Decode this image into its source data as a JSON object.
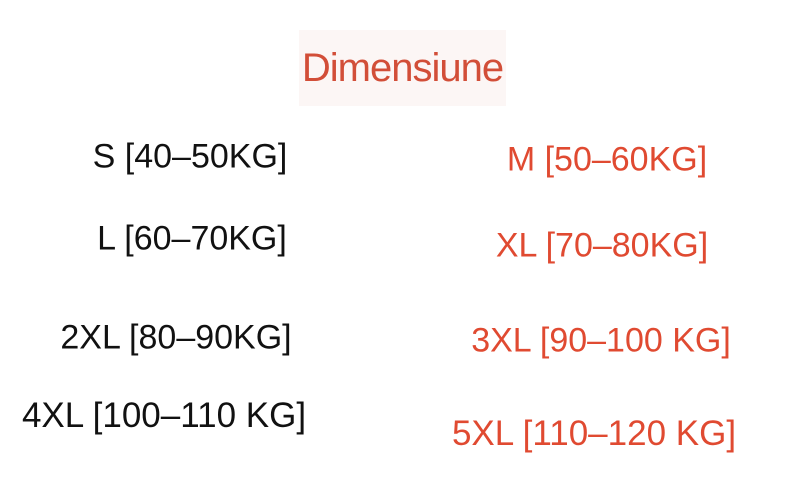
{
  "title": {
    "text": "Dimensiune"
  },
  "sizes": [
    {
      "label": "S [40–50KG]",
      "highlighted": false
    },
    {
      "label": "M [50–60KG]",
      "highlighted": true
    },
    {
      "label": "L [60–70KG]",
      "highlighted": false
    },
    {
      "label": "XL [70–80KG]",
      "highlighted": true
    },
    {
      "label": "2XL [80–90KG]",
      "highlighted": false
    },
    {
      "label": "3XL [90–100 KG]",
      "highlighted": true
    },
    {
      "label": "4XL [100–110 KG]",
      "highlighted": false
    },
    {
      "label": "5XL [110–120 KG]",
      "highlighted": true
    }
  ],
  "colors": {
    "accent": "#e04a31",
    "title_color": "#d24e38",
    "title_background": "#fcf6f5",
    "text": "#111111",
    "background": "#ffffff"
  }
}
